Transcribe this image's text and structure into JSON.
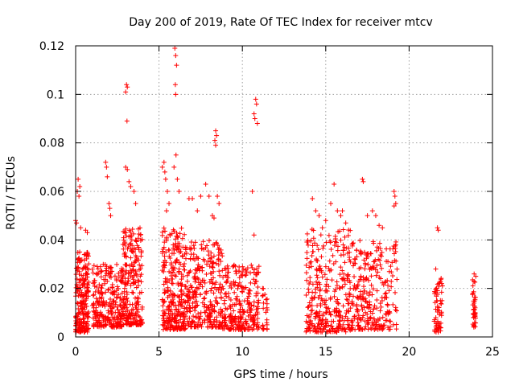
{
  "chart_data": {
    "type": "scatter",
    "title": "Day 200 of 2019, Rate Of TEC Index for receiver mtcv",
    "xlabel": "GPS time / hours",
    "ylabel": "ROTI / TECUs",
    "xlim": [
      0,
      25
    ],
    "ylim": [
      0,
      0.12
    ],
    "xticks": [
      0,
      5,
      10,
      15,
      20,
      25
    ],
    "yticks": [
      0,
      0.02,
      0.04,
      0.06,
      0.08,
      0.1,
      0.12
    ],
    "xtick_labels": [
      "0",
      "5",
      "10",
      "15",
      "20",
      "25"
    ],
    "ytick_labels": [
      "0",
      "0.02",
      "0.04",
      "0.06",
      "0.08",
      "0.1",
      "0.12"
    ],
    "grid": true,
    "marker": "+",
    "color": "#ff0000",
    "series": [
      {
        "name": "ROTI",
        "clusters": [
          {
            "x0": 0.0,
            "x1": 0.8,
            "ymin": 0.002,
            "ymax": 0.035,
            "n": 220
          },
          {
            "x0": 1.0,
            "x1": 2.8,
            "ymin": 0.004,
            "ymax": 0.03,
            "n": 260
          },
          {
            "x0": 2.8,
            "x1": 4.0,
            "ymin": 0.005,
            "ymax": 0.045,
            "n": 240
          },
          {
            "x0": 5.2,
            "x1": 6.6,
            "ymin": 0.003,
            "ymax": 0.045,
            "n": 280
          },
          {
            "x0": 6.6,
            "x1": 8.8,
            "ymin": 0.004,
            "ymax": 0.04,
            "n": 300
          },
          {
            "x0": 8.8,
            "x1": 11.0,
            "ymin": 0.003,
            "ymax": 0.03,
            "n": 260
          },
          {
            "x0": 11.2,
            "x1": 11.5,
            "ymin": 0.003,
            "ymax": 0.022,
            "n": 25
          },
          {
            "x0": 13.8,
            "x1": 16.5,
            "ymin": 0.002,
            "ymax": 0.045,
            "n": 320
          },
          {
            "x0": 16.5,
            "x1": 19.3,
            "ymin": 0.003,
            "ymax": 0.04,
            "n": 280
          },
          {
            "x0": 21.5,
            "x1": 22.0,
            "ymin": 0.002,
            "ymax": 0.025,
            "n": 60
          },
          {
            "x0": 23.8,
            "x1": 24.0,
            "ymin": 0.004,
            "ymax": 0.025,
            "n": 40
          }
        ],
        "outliers": [
          [
            0.0,
            0.048
          ],
          [
            0.05,
            0.047
          ],
          [
            0.1,
            0.06
          ],
          [
            0.15,
            0.065
          ],
          [
            0.2,
            0.058
          ],
          [
            0.25,
            0.062
          ],
          [
            0.3,
            0.045
          ],
          [
            0.6,
            0.044
          ],
          [
            0.7,
            0.043
          ],
          [
            1.8,
            0.072
          ],
          [
            1.85,
            0.07
          ],
          [
            1.9,
            0.066
          ],
          [
            2.0,
            0.055
          ],
          [
            2.1,
            0.05
          ],
          [
            2.05,
            0.053
          ],
          [
            3.0,
            0.101
          ],
          [
            3.05,
            0.104
          ],
          [
            3.1,
            0.103
          ],
          [
            3.08,
            0.089
          ],
          [
            3.0,
            0.07
          ],
          [
            3.1,
            0.069
          ],
          [
            3.2,
            0.064
          ],
          [
            3.5,
            0.06
          ],
          [
            3.6,
            0.055
          ],
          [
            3.3,
            0.062
          ],
          [
            5.2,
            0.07
          ],
          [
            5.3,
            0.072
          ],
          [
            5.35,
            0.068
          ],
          [
            5.4,
            0.065
          ],
          [
            5.5,
            0.06
          ],
          [
            5.6,
            0.055
          ],
          [
            5.45,
            0.052
          ],
          [
            5.95,
            0.119
          ],
          [
            6.0,
            0.116
          ],
          [
            6.05,
            0.112
          ],
          [
            5.98,
            0.104
          ],
          [
            6.0,
            0.1
          ],
          [
            6.02,
            0.075
          ],
          [
            5.9,
            0.07
          ],
          [
            6.1,
            0.065
          ],
          [
            6.2,
            0.06
          ],
          [
            6.8,
            0.057
          ],
          [
            7.0,
            0.057
          ],
          [
            7.3,
            0.052
          ],
          [
            7.5,
            0.058
          ],
          [
            7.8,
            0.063
          ],
          [
            8.0,
            0.058
          ],
          [
            8.2,
            0.05
          ],
          [
            8.3,
            0.049
          ],
          [
            8.4,
            0.085
          ],
          [
            8.45,
            0.083
          ],
          [
            8.35,
            0.081
          ],
          [
            8.4,
            0.079
          ],
          [
            8.5,
            0.058
          ],
          [
            8.6,
            0.055
          ],
          [
            10.8,
            0.098
          ],
          [
            10.85,
            0.096
          ],
          [
            10.7,
            0.092
          ],
          [
            10.75,
            0.09
          ],
          [
            10.9,
            0.088
          ],
          [
            10.6,
            0.06
          ],
          [
            10.7,
            0.042
          ],
          [
            14.2,
            0.057
          ],
          [
            14.4,
            0.052
          ],
          [
            14.6,
            0.05
          ],
          [
            14.8,
            0.045
          ],
          [
            15.0,
            0.048
          ],
          [
            15.5,
            0.063
          ],
          [
            15.3,
            0.055
          ],
          [
            15.7,
            0.052
          ],
          [
            15.9,
            0.05
          ],
          [
            16.0,
            0.052
          ],
          [
            16.2,
            0.047
          ],
          [
            17.2,
            0.065
          ],
          [
            17.25,
            0.064
          ],
          [
            17.5,
            0.05
          ],
          [
            17.8,
            0.052
          ],
          [
            18.0,
            0.05
          ],
          [
            18.2,
            0.046
          ],
          [
            18.4,
            0.045
          ],
          [
            19.1,
            0.06
          ],
          [
            19.15,
            0.058
          ],
          [
            19.2,
            0.055
          ],
          [
            19.1,
            0.054
          ],
          [
            21.7,
            0.045
          ],
          [
            21.75,
            0.044
          ],
          [
            21.6,
            0.028
          ],
          [
            23.9,
            0.026
          ],
          [
            24.0,
            0.025
          ]
        ]
      }
    ]
  }
}
